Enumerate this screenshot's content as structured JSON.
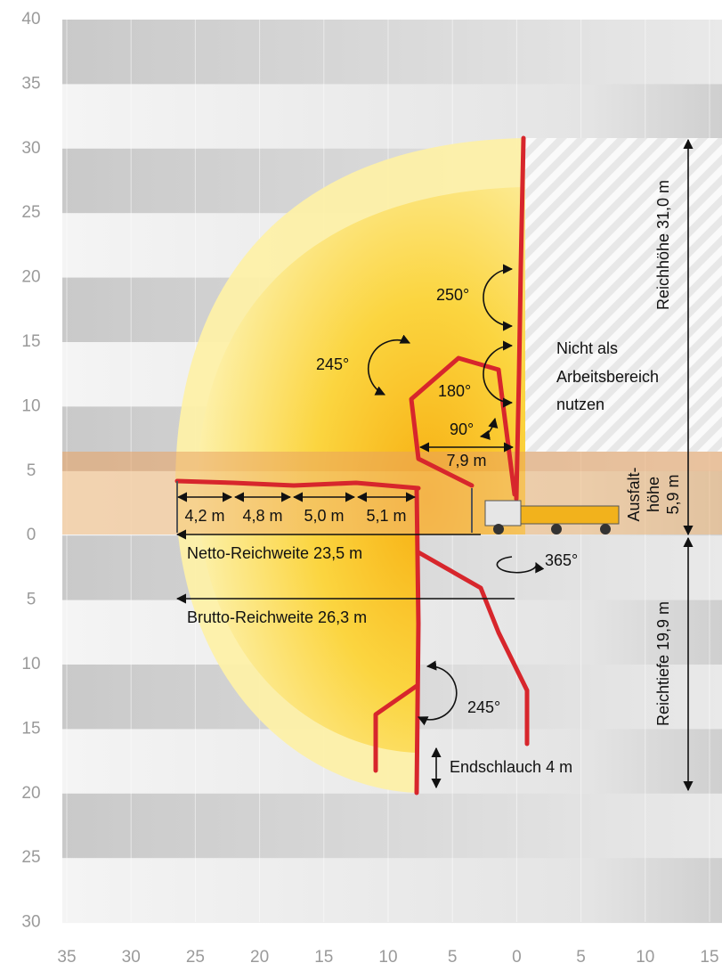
{
  "axes": {
    "left_labels": [
      "40",
      "35",
      "30",
      "25",
      "20",
      "15",
      "10",
      "5",
      "0",
      "5",
      "10",
      "15",
      "20",
      "25",
      "30"
    ],
    "bottom_labels": [
      "35",
      "30",
      "25",
      "20",
      "15",
      "10",
      "5",
      "0",
      "5",
      "10",
      "15"
    ]
  },
  "annotations": {
    "angle_top": "250°",
    "angle_left": "245°",
    "angle_mid": "180°",
    "angle_small": "90°",
    "fold_width": "7,9 m",
    "no_work_zone": [
      "Nicht als",
      "Arbeitsbereich",
      "nutzen"
    ],
    "reach_height": "Reichhöhe 31,0 m",
    "unfold_height": [
      "Ausfalt-",
      "höhe",
      "5,9 m"
    ],
    "segments": [
      "4,2 m",
      "4,8 m",
      "5,0 m",
      "5,1 m"
    ],
    "net_reach": "Netto-Reichweite 23,5 m",
    "rotation": "365°",
    "gross_reach": "Brutto-Reichweite 26,3 m",
    "reach_depth": "Reichtiefe 19,9 m",
    "angle_bottom": "245°",
    "end_hose": "Endschlauch 4 m"
  }
}
